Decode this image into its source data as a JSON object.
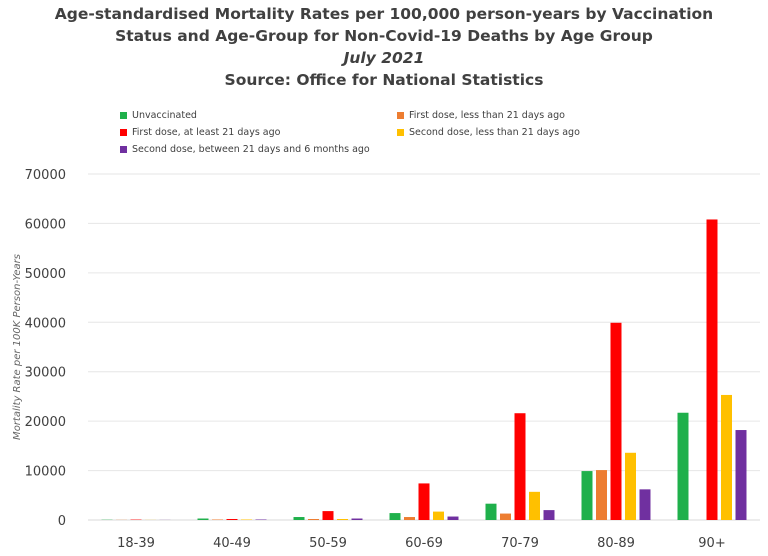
{
  "chart_data": {
    "type": "bar",
    "title_lines": [
      "Age-standardised Mortality Rates per 100,000 person-years by Vaccination",
      "Status and Age-Group for Non-Covid-19 Deaths by Age Group",
      "July 2021",
      "Source: Office for National Statistics"
    ],
    "ylabel": "Mortality Rate per 100K Person-Years",
    "xlabel": "",
    "ylim": [
      0,
      70000
    ],
    "yticks": [
      0,
      10000,
      20000,
      30000,
      40000,
      50000,
      60000,
      70000
    ],
    "grid": true,
    "legend_position": "top",
    "categories": [
      "18-39",
      "40-49",
      "50-59",
      "60-69",
      "70-79",
      "80-89",
      "90+"
    ],
    "series": [
      {
        "name": "Unvaccinated",
        "color": "#1fb04b",
        "values": [
          50,
          300,
          600,
          1400,
          3300,
          9900,
          21700
        ]
      },
      {
        "name": "First dose, less than 21 days ago",
        "color": "#ed7d31",
        "values": [
          30,
          100,
          200,
          600,
          1300,
          10100,
          0
        ]
      },
      {
        "name": "First dose, at least 21 days ago",
        "color": "#ff0000",
        "values": [
          80,
          200,
          1800,
          7400,
          21600,
          39900,
          60800
        ]
      },
      {
        "name": "Second dose, less than 21 days ago",
        "color": "#ffc000",
        "values": [
          20,
          100,
          200,
          1700,
          5700,
          13600,
          25300
        ]
      },
      {
        "name": "Second dose, between 21 days and 6 months ago",
        "color": "#7030a0",
        "values": [
          20,
          100,
          300,
          700,
          2000,
          6200,
          18200
        ]
      }
    ]
  }
}
